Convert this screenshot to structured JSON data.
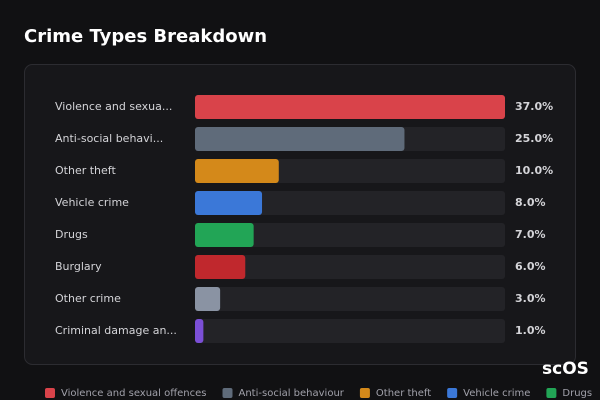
{
  "chart_data": {
    "type": "bar",
    "orientation": "horizontal",
    "title": "Crime Types Breakdown",
    "categories": [
      "Violence and sexua...",
      "Anti-social behavi...",
      "Other theft",
      "Vehicle crime",
      "Drugs",
      "Burglary",
      "Other crime",
      "Criminal damage an..."
    ],
    "values": [
      37,
      25,
      10,
      8,
      7,
      6,
      3,
      1
    ],
    "value_labels": [
      "37.0%",
      "25.0%",
      "10.0%",
      "8.0%",
      "7.0%",
      "6.0%",
      "3.0%",
      "1.0%"
    ],
    "colors": [
      "#d9434a",
      "#5f6b7a",
      "#d4891a",
      "#3b78d8",
      "#22a556",
      "#c0282d",
      "#8a93a3",
      "#7b4fd6"
    ],
    "legend": [
      "Violence and sexual offences",
      "Anti-social behaviour",
      "Other theft",
      "Vehicle crime",
      "Drugs"
    ],
    "watermark": "scOS"
  }
}
